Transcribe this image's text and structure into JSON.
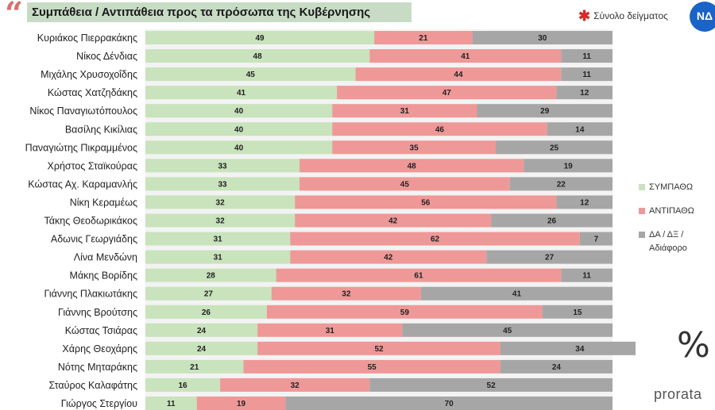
{
  "title": "Συμπάθεια / Αντιπάθεια προς τα πρόσωπα της Κυβέρνησης",
  "sample_note": "Σύνολο δείγματος",
  "brand": "prorata",
  "colors": {
    "sympathy": "#c9e3bd",
    "antipathy": "#ef9898",
    "other": "#a6a6a6",
    "title_bg": "#c8dcc5"
  },
  "chart_data": {
    "type": "bar",
    "orientation": "horizontal",
    "stacked": true,
    "categories": [
      "Κυριάκος Πιερρακάκης",
      "Νίκος Δένδιας",
      "Μιχάλης Χρυσοχοΐδης",
      "Κώστας Χατζηδάκης",
      "Νίκος Παναγιωτόπουλος",
      "Βασίλης Κικίλιας",
      "Παναγιώτης Πικραμμένος",
      "Χρήστος Σταϊκούρας",
      "Κώστας Αχ. Καραμανλής",
      "Νίκη Κεραμέως",
      "Τάκης Θεοδωρικάκος",
      "Αδωνις Γεωργιάδης",
      "Λίνα Μενδώνη",
      "Μάκης Βορίδης",
      "Γιάννης Πλακιωτάκης",
      "Γιάννης Βρούτσης",
      "Κώστας Τσιάρας",
      "Χάρης Θεοχάρης",
      "Νότης Μηταράκης",
      "Σταύρος Καλαφάτης",
      "Γιώργος Στεργίου"
    ],
    "series": [
      {
        "name": "ΣΥΜΠΑΘΩ",
        "color": "#c9e3bd",
        "values": [
          49,
          48,
          45,
          41,
          40,
          40,
          40,
          33,
          33,
          32,
          32,
          31,
          31,
          28,
          27,
          26,
          24,
          24,
          21,
          16,
          11
        ]
      },
      {
        "name": "ΑΝΤΙΠΑΘΩ",
        "color": "#ef9898",
        "values": [
          21,
          41,
          44,
          47,
          31,
          46,
          35,
          48,
          45,
          56,
          42,
          62,
          42,
          61,
          32,
          59,
          31,
          52,
          55,
          32,
          19
        ]
      },
      {
        "name": "ΔΑ / ΔΞ / Αδιάφορο",
        "color": "#a6a6a6",
        "values": [
          30,
          11,
          11,
          12,
          29,
          14,
          25,
          19,
          22,
          12,
          26,
          7,
          27,
          11,
          41,
          15,
          45,
          34,
          24,
          52,
          70
        ]
      }
    ],
    "legend": [
      "ΣΥΜΠΑΘΩ",
      "ΑΝΤΙΠΑΘΩ",
      "ΔΑ / ΔΞ / Αδιάφορο"
    ],
    "legend_position": "right"
  }
}
